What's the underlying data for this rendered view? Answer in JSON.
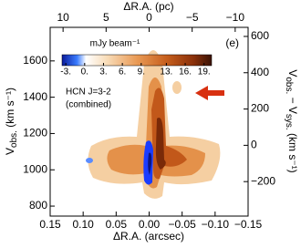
{
  "chart_data": {
    "type": "pv-map",
    "panel_label": "(e)",
    "annotation_lines": [
      "HCN J=3-2",
      "(combined)"
    ],
    "x_label": "ΔR.A. (arcsec)",
    "x2_label": "ΔR.A. (pc)",
    "y_label": {
      "main": "V",
      "sub": "obs.",
      "rest": " (km s⁻¹)"
    },
    "y2_label": {
      "main": "V",
      "sub": "obs.",
      "mid": " − V",
      "sub2": "sys.",
      "rest": " (km s⁻¹)"
    },
    "xlim": [
      0.15,
      -0.15
    ],
    "xticks": [
      {
        "value": 0.15,
        "label": "0.15"
      },
      {
        "value": 0.1,
        "label": "0.10"
      },
      {
        "value": 0.05,
        "label": "0.05"
      },
      {
        "value": 0,
        "label": "0.00"
      },
      {
        "value": -0.05,
        "label": "−0.05"
      },
      {
        "value": -0.1,
        "label": "−0.10"
      },
      {
        "value": -0.15,
        "label": "−0.15"
      }
    ],
    "x2lim": [
      11.5,
      -11.5
    ],
    "x2ticks": [
      10,
      5,
      0,
      {
        "value": -5,
        "label": "−5"
      },
      {
        "value": -10,
        "label": "−10"
      }
    ],
    "ylim": [
      745,
      1785
    ],
    "yticks": [
      800,
      1000,
      1200,
      1400,
      1600
    ],
    "y2lim": [
      -390,
      650
    ],
    "y2ticks": [
      {
        "value": -200,
        "label": "−200"
      },
      0,
      200,
      400,
      600
    ],
    "colorbar": {
      "label": "mJy beam⁻¹",
      "clim": [
        -3.6,
        20.2
      ],
      "ticks": [
        {
          "value": -3,
          "label": "-3."
        },
        {
          "value": 0,
          "label": "0."
        },
        {
          "value": 3,
          "label": "3."
        },
        {
          "value": 6,
          "label": "6."
        },
        {
          "value": 9,
          "label": "9."
        },
        {
          "value": 13,
          "label": "13."
        },
        {
          "value": 16,
          "label": "16."
        },
        {
          "value": 19,
          "label": "19."
        }
      ]
    }
  }
}
